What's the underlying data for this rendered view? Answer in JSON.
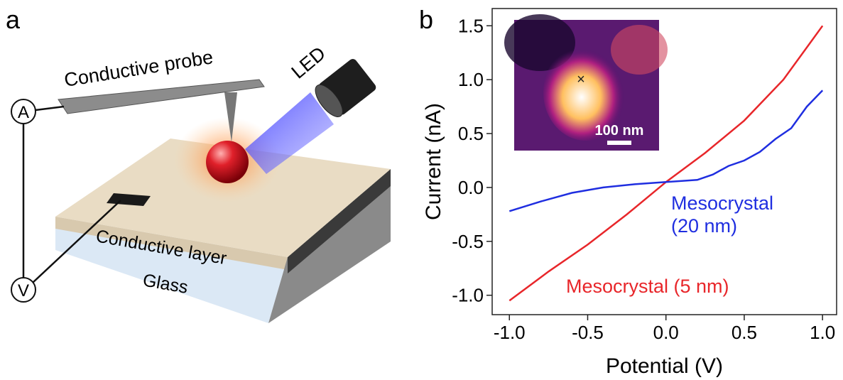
{
  "panel_labels": [
    "a",
    "b"
  ],
  "diagram": {
    "probe_label": "Conductive probe",
    "led_label": "LED",
    "ammeter_label": "A",
    "voltmeter_label": "V",
    "layer_label": "Conductive layer",
    "glass_label": "Glass"
  },
  "inset": {
    "scale_label": "100 nm"
  },
  "chart_data": {
    "type": "line",
    "x_label": "Potential (V)",
    "y_label": "Current (nA)",
    "xlim": [
      -1.11,
      1.09
    ],
    "ylim": [
      -1.18,
      1.66
    ],
    "xticks": [
      {
        "value": -1,
        "label": "-1.0"
      },
      -0.5,
      {
        "value": 0,
        "label": "0.0"
      },
      0.5,
      {
        "value": 1,
        "label": "1.0"
      }
    ],
    "yticks": [
      {
        "value": -1,
        "label": "-1.0"
      },
      -0.5,
      {
        "value": 0,
        "label": "0.0"
      },
      0.5,
      {
        "value": 1,
        "label": "1.0"
      },
      1.5
    ],
    "series": [
      {
        "name": "Mesocrystal (5 nm)",
        "color": "#e8262a",
        "x": [
          -1.0,
          -0.75,
          -0.5,
          -0.25,
          0.0,
          0.25,
          0.5,
          0.75,
          1.0
        ],
        "values": [
          -1.05,
          -0.78,
          -0.53,
          -0.25,
          0.05,
          0.32,
          0.62,
          1.0,
          1.5
        ]
      },
      {
        "name": "Mesocrystal (20 nm)",
        "color": "#1f2ee0",
        "x": [
          -1.0,
          -0.8,
          -0.6,
          -0.4,
          -0.2,
          0.0,
          0.2,
          0.3,
          0.4,
          0.5,
          0.6,
          0.7,
          0.8,
          0.9,
          1.0
        ],
        "values": [
          -0.22,
          -0.13,
          -0.05,
          0.0,
          0.03,
          0.05,
          0.07,
          0.12,
          0.2,
          0.25,
          0.33,
          0.45,
          0.55,
          0.75,
          0.9
        ]
      }
    ]
  }
}
